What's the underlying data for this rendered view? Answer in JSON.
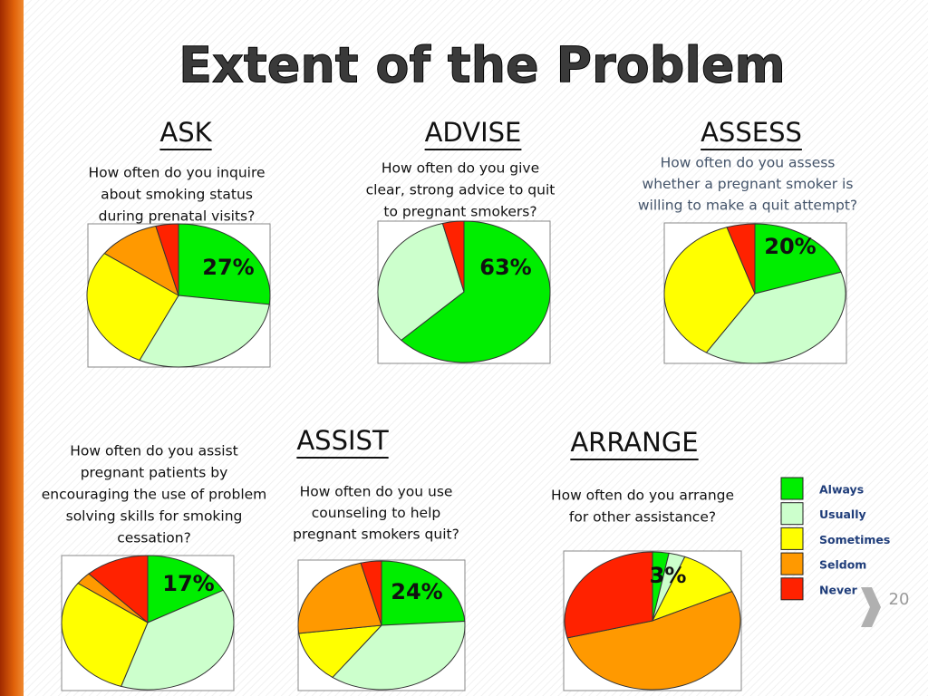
{
  "title": "Extent of the Problem",
  "slide_number": "20",
  "legend": {
    "categories": [
      "Always",
      "Usually",
      "Sometimes",
      "Seldom",
      "Never"
    ],
    "colors": [
      "#00ee00",
      "#ccffcc",
      "#ffff00",
      "#ff9900",
      "#ff2200"
    ]
  },
  "chart_data": [
    {
      "type": "pie",
      "title": "ASK",
      "question": [
        "How often do you inquire",
        "about smoking status",
        "during prenatal visits?"
      ],
      "values": [
        27,
        30,
        28,
        11,
        4
      ],
      "value_labels": [
        "27%",
        null,
        null,
        null,
        null
      ]
    },
    {
      "type": "pie",
      "title": "ADVISE",
      "question": [
        "How often do you give",
        "clear, strong advice to quit",
        "to pregnant smokers?"
      ],
      "values": [
        63,
        33,
        0,
        0,
        4
      ],
      "value_labels": [
        "63%",
        null,
        null,
        null,
        null
      ]
    },
    {
      "type": "pie",
      "title": "ASSESS",
      "question": [
        "How often do you assess",
        "whether a pregnant smoker is",
        "willing to make a quit attempt?"
      ],
      "values": [
        20,
        39,
        36,
        0,
        5
      ],
      "value_labels": [
        "20%",
        null,
        null,
        null,
        null
      ]
    },
    {
      "type": "pie",
      "question": [
        "How often do you assist",
        "pregnant patients by",
        "encouraging the use of problem",
        "solving skills for smoking",
        "cessation?"
      ],
      "values": [
        17,
        38,
        30,
        3,
        12
      ],
      "value_labels": [
        "17%",
        null,
        null,
        null,
        null
      ]
    },
    {
      "type": "pie",
      "title": "ASSIST",
      "question": [
        "How often do you use",
        "counseling to help",
        "pregnant smokers quit?"
      ],
      "values": [
        24,
        36,
        13,
        23,
        4
      ],
      "value_labels": [
        "24%",
        null,
        null,
        null,
        null
      ]
    },
    {
      "type": "pie",
      "title": "ARRANGE",
      "question": [
        "How often do you arrange",
        "for other assistance?"
      ],
      "values": [
        3,
        3,
        12,
        53,
        29
      ],
      "value_labels": [
        "3%",
        null,
        null,
        null,
        null
      ]
    }
  ]
}
